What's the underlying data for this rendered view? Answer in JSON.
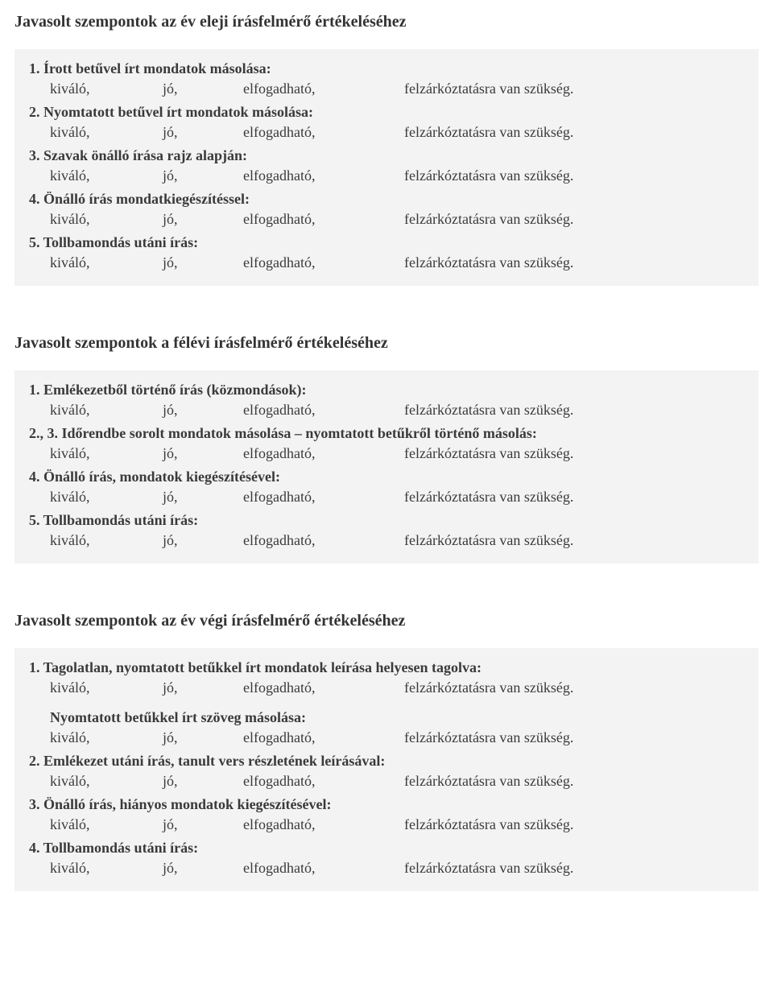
{
  "ratings": {
    "c1": "kiváló,",
    "c2": "jó,",
    "c3": "elfogadható,",
    "c4": "felzárkóztatásra van szükség."
  },
  "sections": [
    {
      "title": "Javasolt szempontok az év eleji írásfelmérő értékeléséhez",
      "items": [
        {
          "heading": "1. Írott betűvel írt mondatok másolása:"
        },
        {
          "heading": "2. Nyomtatott betűvel írt mondatok másolása:"
        },
        {
          "heading": "3. Szavak önálló írása rajz alapján:"
        },
        {
          "heading": "4. Önálló írás mondatkiegészítéssel:"
        },
        {
          "heading": "5. Tollbamondás utáni írás:"
        }
      ]
    },
    {
      "title": "Javasolt szempontok a félévi írásfelmérő értékeléséhez",
      "items": [
        {
          "heading": "1. Emlékezetből történő írás (közmondások):"
        },
        {
          "heading": "2., 3. Időrendbe sorolt mondatok másolása – nyomtatott betűkről történő másolás:"
        },
        {
          "heading": "4. Önálló írás, mondatok kiegészítésével:"
        },
        {
          "heading": "5. Tollbamondás utáni írás:"
        }
      ]
    },
    {
      "title": "Javasolt szempontok az év végi írásfelmérő értékeléséhez",
      "items": [
        {
          "heading": "1. Tagolatlan, nyomtatott betűkkel írt mondatok leírása helyesen tagolva:",
          "sub": "Nyomtatott betűkkel írt szöveg másolása:"
        },
        {
          "heading": "2. Emlékezet utáni írás, tanult vers részletének leírásával:"
        },
        {
          "heading": "3. Önálló írás, hiányos mondatok kiegészítésével:"
        },
        {
          "heading": "4. Tollbamondás utáni írás:"
        }
      ]
    }
  ]
}
